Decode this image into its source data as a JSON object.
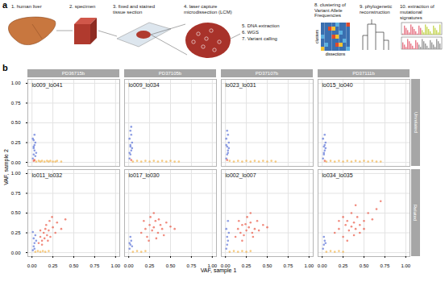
{
  "panel_labels": [
    "a",
    "b"
  ],
  "diagram": {
    "steps": [
      {
        "lines": [
          "1. human liver"
        ]
      },
      {
        "lines": [
          "2. specimen"
        ]
      },
      {
        "lines": [
          "3. fixed and stained",
          "tissue section"
        ]
      },
      {
        "lines": [
          "4. laser capture",
          "microdissection (LCM)"
        ]
      },
      {
        "lines": [
          "5. DNA extraction"
        ]
      },
      {
        "lines": [
          "6. WGS"
        ]
      },
      {
        "lines": [
          "7. Variant calling"
        ]
      },
      {
        "lines": [
          "8. clustering of",
          "Variant Allele",
          "Frequencies"
        ]
      },
      {
        "lines": [
          "9. phylogenetic",
          "reconstruction"
        ]
      },
      {
        "lines": [
          "10. extraction of",
          "mutational",
          "signatures"
        ]
      }
    ],
    "heatmap_row_label": "clusters",
    "heatmap_column_label": "dissections"
  },
  "chart_data": {
    "type": "scatter",
    "xlabel": "VAF, sample 1",
    "ylabel": "VAF, sample 2",
    "xlim": [
      -0.05,
      1.05
    ],
    "ylim": [
      -0.05,
      1.05
    ],
    "xticks": [
      {
        "value": 0,
        "label": "0.00"
      },
      {
        "value": 0.25,
        "label": "0.25"
      },
      {
        "value": 0.5,
        "label": "0.50"
      },
      {
        "value": 0.75,
        "label": "0.75"
      },
      {
        "value": 1,
        "label": "1.00"
      }
    ],
    "yticks": [
      {
        "value": 0,
        "label": "0.00"
      },
      {
        "value": 0.25,
        "label": "0.25"
      },
      {
        "value": 0.5,
        "label": "0.50"
      },
      {
        "value": 0.75,
        "label": "0.75"
      },
      {
        "value": 1,
        "label": "1.00"
      }
    ],
    "grid": true,
    "facet_columns": [
      "PD36715b",
      "PD37105b",
      "PD37107b",
      "PD37111b"
    ],
    "facet_rows": [
      "Unrelated",
      "Related"
    ],
    "panels": [
      {
        "column": "PD36715b",
        "row": "Unrelated",
        "label": "lo009_lo041",
        "series": [
          {
            "color": "#3f5bd1",
            "x": [
              0.01,
              0.02,
              0.03,
              0.02,
              0.04,
              0.01,
              0.03,
              0.05,
              0.02,
              0.03,
              0.04,
              0.02
            ],
            "y": [
              0.05,
              0.1,
              0.15,
              0.2,
              0.25,
              0.3,
              0.35,
              0.12,
              0.18,
              0.22,
              0.08,
              0.28
            ]
          },
          {
            "color": "#f0a830",
            "x": [
              0.05,
              0.08,
              0.1,
              0.12,
              0.15,
              0.18,
              0.2,
              0.22,
              0.25,
              0.28,
              0.3,
              0.35
            ],
            "y": [
              0.01,
              0.02,
              0.01,
              0.02,
              0.01,
              0.02,
              0.01,
              0.02,
              0.01,
              0.01,
              0.02,
              0.01
            ]
          },
          {
            "color": "#e8402a",
            "x": [
              0.02,
              0.03
            ],
            "y": [
              0.02,
              0.03
            ]
          }
        ]
      },
      {
        "column": "PD37105b",
        "row": "Unrelated",
        "label": "lo009_lo034",
        "series": [
          {
            "color": "#3f5bd1",
            "x": [
              0.01,
              0.02,
              0.03,
              0.02,
              0.04,
              0.01,
              0.03,
              0.02,
              0.03,
              0.01,
              0.02,
              0.04
            ],
            "y": [
              0.05,
              0.1,
              0.15,
              0.2,
              0.25,
              0.3,
              0.35,
              0.4,
              0.45,
              0.12,
              0.22,
              0.18
            ]
          },
          {
            "color": "#f0a830",
            "x": [
              0.05,
              0.1,
              0.15,
              0.2,
              0.25,
              0.3,
              0.35,
              0.4,
              0.45,
              0.5,
              0.55,
              0.6
            ],
            "y": [
              0.01,
              0.02,
              0.01,
              0.02,
              0.01,
              0.02,
              0.01,
              0.02,
              0.01,
              0.02,
              0.01,
              0.01
            ]
          },
          {
            "color": "#e8402a",
            "x": [
              0.03
            ],
            "y": [
              0.03
            ]
          }
        ]
      },
      {
        "column": "PD37107b",
        "row": "Unrelated",
        "label": "lo023_lo031",
        "series": [
          {
            "color": "#3f5bd1",
            "x": [
              0.01,
              0.02,
              0.03,
              0.02,
              0.04,
              0.01,
              0.03,
              0.02,
              0.03,
              0.01,
              0.04
            ],
            "y": [
              0.05,
              0.1,
              0.15,
              0.2,
              0.25,
              0.3,
              0.35,
              0.4,
              0.12,
              0.22,
              0.18
            ]
          },
          {
            "color": "#f0a830",
            "x": [
              0.05,
              0.1,
              0.15,
              0.2,
              0.25,
              0.3,
              0.35,
              0.4,
              0.45,
              0.5,
              0.55,
              0.6
            ],
            "y": [
              0.02,
              0.01,
              0.02,
              0.01,
              0.02,
              0.01,
              0.02,
              0.01,
              0.02,
              0.01,
              0.02,
              0.01
            ]
          },
          {
            "color": "#e8402a",
            "x": [
              0.02
            ],
            "y": [
              0.03
            ]
          }
        ]
      },
      {
        "column": "PD37111b",
        "row": "Unrelated",
        "label": "lo015_lo040",
        "series": [
          {
            "color": "#3f5bd1",
            "x": [
              0.01,
              0.02,
              0.03,
              0.02,
              0.04,
              0.01,
              0.03,
              0.02,
              0.03,
              0.04
            ],
            "y": [
              0.05,
              0.1,
              0.15,
              0.2,
              0.25,
              0.3,
              0.35,
              0.12,
              0.22,
              0.18
            ]
          },
          {
            "color": "#f0a830",
            "x": [
              0.05,
              0.1,
              0.15,
              0.2,
              0.25,
              0.3,
              0.35,
              0.4,
              0.45,
              0.5,
              0.55,
              0.6,
              0.65,
              0.7
            ],
            "y": [
              0.01,
              0.02,
              0.01,
              0.02,
              0.01,
              0.02,
              0.01,
              0.02,
              0.01,
              0.02,
              0.01,
              0.02,
              0.01,
              0.01
            ]
          },
          {
            "color": "#e8402a",
            "x": [
              0.03
            ],
            "y": [
              0.02
            ]
          }
        ]
      },
      {
        "column": "PD36715b",
        "row": "Related",
        "label": "lo011_lo032",
        "series": [
          {
            "color": "#3f5bd1",
            "x": [
              0.01,
              0.02,
              0.03,
              0.02,
              0.04,
              0.01,
              0.03,
              0.05
            ],
            "y": [
              0.03,
              0.08,
              0.12,
              0.18,
              0.22,
              0.26,
              0.05,
              0.15
            ]
          },
          {
            "color": "#f0a830",
            "x": [
              0.04,
              0.07,
              0.1,
              0.13,
              0.16,
              0.2
            ],
            "y": [
              0.01,
              0.02,
              0.01,
              0.02,
              0.01,
              0.02
            ]
          },
          {
            "color": "#e8402a",
            "x": [
              0.08,
              0.1,
              0.12,
              0.14,
              0.15,
              0.16,
              0.18,
              0.2,
              0.22,
              0.25,
              0.12,
              0.17,
              0.21,
              0.28,
              0.3,
              0.35,
              0.1,
              0.19,
              0.24,
              0.4
            ],
            "y": [
              0.12,
              0.2,
              0.15,
              0.25,
              0.18,
              0.3,
              0.22,
              0.28,
              0.2,
              0.32,
              0.1,
              0.35,
              0.4,
              0.25,
              0.38,
              0.3,
              0.28,
              0.15,
              0.45,
              0.42
            ]
          }
        ]
      },
      {
        "column": "PD37105b",
        "row": "Related",
        "label": "lo017_lo030",
        "series": [
          {
            "color": "#3f5bd1",
            "x": [
              0.01,
              0.02,
              0.03,
              0.02,
              0.04,
              0.01
            ],
            "y": [
              0.05,
              0.1,
              0.15,
              0.2,
              0.08,
              0.12
            ]
          },
          {
            "color": "#f0a830",
            "x": [
              0.05,
              0.1,
              0.15,
              0.2
            ],
            "y": [
              0.01,
              0.02,
              0.01,
              0.02
            ]
          },
          {
            "color": "#e8402a",
            "x": [
              0.15,
              0.2,
              0.22,
              0.25,
              0.28,
              0.3,
              0.32,
              0.35,
              0.38,
              0.4,
              0.45,
              0.5,
              0.18,
              0.26,
              0.33,
              0.42,
              0.3,
              0.24,
              0.36,
              0.55
            ],
            "y": [
              0.25,
              0.3,
              0.2,
              0.35,
              0.28,
              0.32,
              0.4,
              0.25,
              0.35,
              0.3,
              0.38,
              0.33,
              0.4,
              0.45,
              0.18,
              0.22,
              0.5,
              0.15,
              0.42,
              0.3
            ]
          }
        ]
      },
      {
        "column": "PD37107b",
        "row": "Related",
        "label": "lo002_lo007",
        "series": [
          {
            "color": "#3f5bd1",
            "x": [
              0.01,
              0.02,
              0.03,
              0.02,
              0.04,
              0.01,
              0.03
            ],
            "y": [
              0.05,
              0.1,
              0.15,
              0.2,
              0.25,
              0.3,
              0.4
            ]
          },
          {
            "color": "#f0a830",
            "x": [
              0.05,
              0.1,
              0.15,
              0.2,
              0.25,
              0.3
            ],
            "y": [
              0.01,
              0.02,
              0.01,
              0.02,
              0.01,
              0.02
            ]
          },
          {
            "color": "#e8402a",
            "x": [
              0.12,
              0.15,
              0.18,
              0.2,
              0.22,
              0.25,
              0.28,
              0.3,
              0.32,
              0.35,
              0.38,
              0.4,
              0.45,
              0.2,
              0.26,
              0.33,
              0.16,
              0.24,
              0.3,
              0.5
            ],
            "y": [
              0.2,
              0.3,
              0.25,
              0.35,
              0.22,
              0.28,
              0.32,
              0.38,
              0.25,
              0.3,
              0.4,
              0.28,
              0.35,
              0.15,
              0.45,
              0.2,
              0.4,
              0.36,
              0.5,
              0.32
            ]
          }
        ]
      },
      {
        "column": "PD37111b",
        "row": "Related",
        "label": "lo034_lo035",
        "series": [
          {
            "color": "#3f5bd1",
            "x": [
              0.01,
              0.02,
              0.03,
              0.02,
              0.04
            ],
            "y": [
              0.05,
              0.1,
              0.15,
              0.2,
              0.12
            ]
          },
          {
            "color": "#f0a830",
            "x": [
              0.05,
              0.1,
              0.15,
              0.2,
              0.25
            ],
            "y": [
              0.01,
              0.02,
              0.01,
              0.02,
              0.01
            ]
          },
          {
            "color": "#e8402a",
            "x": [
              0.15,
              0.2,
              0.25,
              0.28,
              0.3,
              0.32,
              0.35,
              0.38,
              0.4,
              0.42,
              0.45,
              0.5,
              0.55,
              0.6,
              0.65,
              0.25,
              0.35,
              0.45,
              0.3,
              0.4,
              0.2,
              0.5,
              0.38,
              0.7
            ],
            "y": [
              0.25,
              0.3,
              0.2,
              0.35,
              0.4,
              0.28,
              0.33,
              0.38,
              0.3,
              0.45,
              0.35,
              0.4,
              0.5,
              0.42,
              0.55,
              0.45,
              0.5,
              0.25,
              0.15,
              0.6,
              0.4,
              0.3,
              0.22,
              0.65
            ]
          }
        ]
      }
    ]
  }
}
